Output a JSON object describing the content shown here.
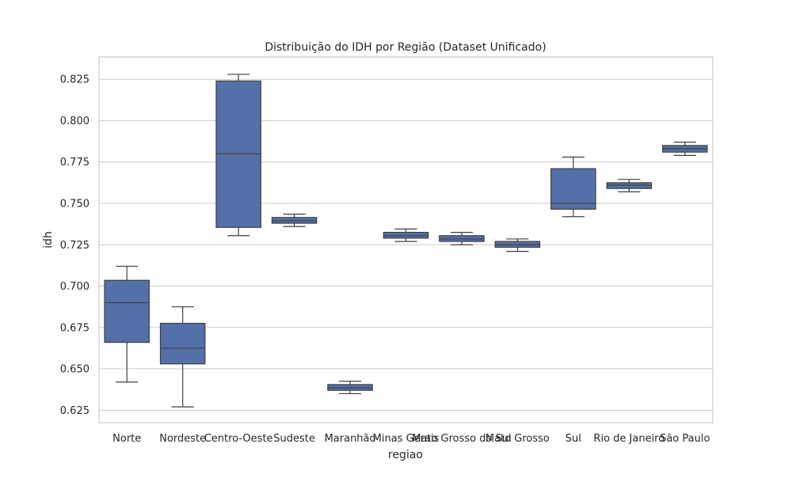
{
  "chart_data": {
    "type": "box",
    "title": "Distribuição do IDH por Região (Dataset Unificado)",
    "xlabel": "regiao",
    "ylabel": "idh",
    "ylim": [
      0.6175,
      0.8385
    ],
    "yticks": [
      0.625,
      0.65,
      0.675,
      0.7,
      0.725,
      0.75,
      0.775,
      0.8,
      0.825
    ],
    "ytick_labels": [
      "0.625",
      "0.650",
      "0.675",
      "0.700",
      "0.725",
      "0.750",
      "0.775",
      "0.800",
      "0.825"
    ],
    "grid": true,
    "color": "#5470a8",
    "edge_color": "#3f3f3f",
    "categories": [
      "Norte",
      "Nordeste",
      "Centro-Oeste",
      "Sudeste",
      "Maranhão",
      "Minas Gerais",
      "Mato Grosso do Sul",
      "Mato Grosso",
      "Sul",
      "Rio de Janeiro",
      "São Paulo"
    ],
    "boxes": [
      {
        "category": "Norte",
        "whisker_low": 0.642,
        "q1": 0.666,
        "median": 0.69,
        "q3": 0.7035,
        "whisker_high": 0.712
      },
      {
        "category": "Nordeste",
        "whisker_low": 0.627,
        "q1": 0.653,
        "median": 0.6625,
        "q3": 0.6775,
        "whisker_high": 0.6875
      },
      {
        "category": "Centro-Oeste",
        "whisker_low": 0.7305,
        "q1": 0.7355,
        "median": 0.78,
        "q3": 0.824,
        "whisker_high": 0.828
      },
      {
        "category": "Sudeste",
        "whisker_low": 0.736,
        "q1": 0.738,
        "median": 0.7395,
        "q3": 0.7415,
        "whisker_high": 0.7435
      },
      {
        "category": "Maranhão",
        "whisker_low": 0.635,
        "q1": 0.637,
        "median": 0.6385,
        "q3": 0.6405,
        "whisker_high": 0.6425
      },
      {
        "category": "Minas Gerais",
        "whisker_low": 0.727,
        "q1": 0.729,
        "median": 0.7305,
        "q3": 0.7325,
        "whisker_high": 0.7345
      },
      {
        "category": "Mato Grosso do Sul",
        "whisker_low": 0.725,
        "q1": 0.727,
        "median": 0.7285,
        "q3": 0.7305,
        "whisker_high": 0.7325
      },
      {
        "category": "Mato Grosso",
        "whisker_low": 0.721,
        "q1": 0.7235,
        "median": 0.725,
        "q3": 0.727,
        "whisker_high": 0.7285
      },
      {
        "category": "Sul",
        "whisker_low": 0.742,
        "q1": 0.7465,
        "median": 0.75,
        "q3": 0.771,
        "whisker_high": 0.778
      },
      {
        "category": "Rio de Janeiro",
        "whisker_low": 0.757,
        "q1": 0.759,
        "median": 0.761,
        "q3": 0.7625,
        "whisker_high": 0.7645
      },
      {
        "category": "São Paulo",
        "whisker_low": 0.779,
        "q1": 0.781,
        "median": 0.783,
        "q3": 0.785,
        "whisker_high": 0.787
      }
    ]
  }
}
